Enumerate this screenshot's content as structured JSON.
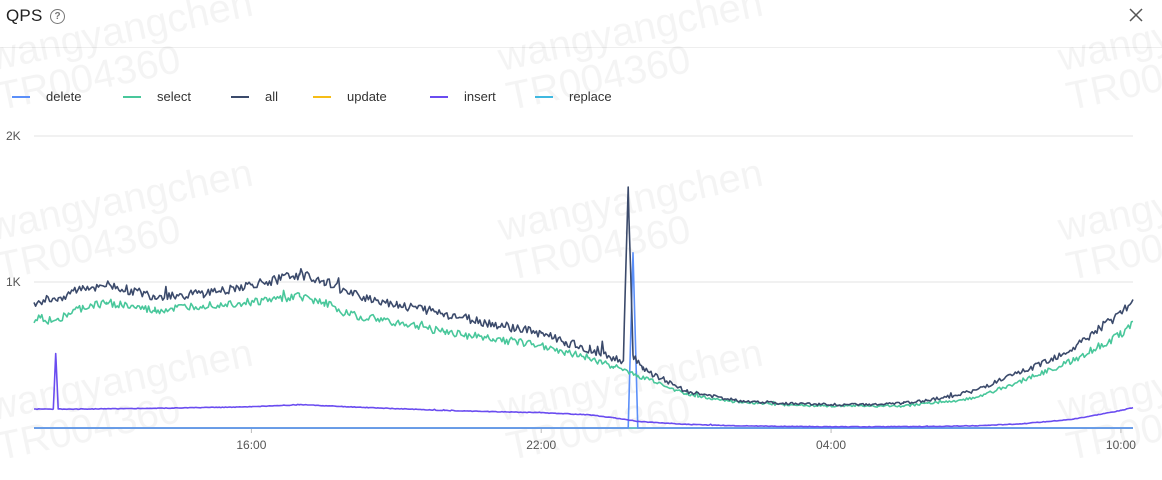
{
  "header": {
    "title": "QPS",
    "help_icon": "help-circle-icon",
    "help_glyph": "?",
    "close_icon": "close-icon"
  },
  "watermark": {
    "line1": "wangyangchen",
    "line2": "TR004360"
  },
  "chart_data": {
    "type": "line",
    "legend_position": "top-left",
    "grid": true,
    "ylim": [
      0,
      2000
    ],
    "yticks": [
      {
        "value": 1000,
        "label": "1K"
      },
      {
        "value": 2000,
        "label": "2K"
      }
    ],
    "xlim": [
      11.5,
      34.25
    ],
    "x_unit": "hours since 00:00 of the first day",
    "xticks": [
      {
        "value": 16,
        "label": "16:00"
      },
      {
        "value": 22,
        "label": "22:00"
      },
      {
        "value": 28,
        "label": "04:00"
      },
      {
        "value": 34,
        "label": "10:00"
      }
    ],
    "series": [
      {
        "name": "delete",
        "color": "#5B8FF9",
        "x": [
          11.5,
          23.8,
          23.9,
          24.0,
          24.1,
          34.25
        ],
        "y": [
          0,
          0,
          1200,
          0,
          0,
          0
        ]
      },
      {
        "name": "select",
        "color": "#49C79B",
        "x": [
          11.5,
          12,
          12.5,
          13,
          14,
          15,
          16,
          17,
          17.5,
          18,
          19,
          20,
          21,
          22,
          22.5,
          23,
          23.5,
          24,
          24.5,
          25,
          26,
          27,
          28,
          29,
          29.5,
          30,
          30.5,
          31,
          32,
          33,
          34,
          34.25
        ],
        "y": [
          720,
          750,
          820,
          860,
          800,
          840,
          860,
          900,
          860,
          780,
          720,
          660,
          610,
          570,
          520,
          480,
          420,
          360,
          300,
          230,
          180,
          160,
          150,
          150,
          150,
          170,
          180,
          210,
          330,
          460,
          640,
          730
        ]
      },
      {
        "name": "all",
        "color": "#3B4A6B",
        "x": [
          11.5,
          12,
          12.5,
          13,
          14,
          15,
          16,
          17,
          17.5,
          18,
          19,
          20,
          21,
          22,
          22.5,
          23,
          23.5,
          23.7,
          23.8,
          23.9,
          24.1,
          24.5,
          25,
          26,
          27,
          28,
          29,
          29.5,
          30,
          30.5,
          31,
          32,
          33,
          34,
          34.25
        ],
        "y": [
          860,
          890,
          960,
          980,
          900,
          920,
          980,
          1050,
          1010,
          920,
          850,
          780,
          710,
          650,
          590,
          540,
          480,
          460,
          1650,
          500,
          400,
          340,
          250,
          190,
          170,
          160,
          160,
          170,
          190,
          220,
          260,
          390,
          540,
          790,
          880
        ]
      },
      {
        "name": "update",
        "color": "#F6BD16",
        "x": [
          11.5,
          34.25
        ],
        "y": [
          0,
          0
        ]
      },
      {
        "name": "insert",
        "color": "#6A4CF0",
        "x": [
          11.5,
          11.9,
          11.95,
          12.0,
          12.5,
          14,
          16,
          17,
          18,
          20,
          22,
          23,
          23.5,
          24,
          25,
          26,
          28,
          30,
          31,
          32,
          33,
          34,
          34.25
        ],
        "y": [
          130,
          130,
          510,
          130,
          130,
          135,
          145,
          160,
          145,
          120,
          105,
          90,
          70,
          45,
          25,
          15,
          8,
          10,
          15,
          30,
          60,
          120,
          140
        ]
      },
      {
        "name": "replace",
        "color": "#3FB8E0",
        "x": [
          11.5,
          34.25
        ],
        "y": [
          0,
          0
        ]
      }
    ]
  }
}
